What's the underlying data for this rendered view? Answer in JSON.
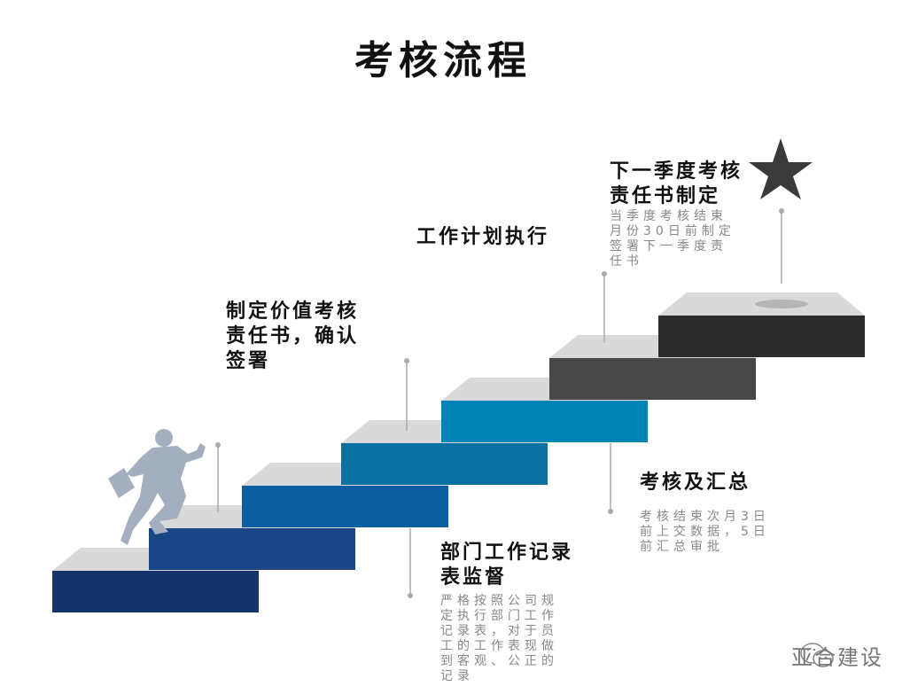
{
  "title": "考核流程",
  "steps_colors": [
    "#15336a",
    "#1b4686",
    "#0b5ea0",
    "#0a70a2",
    "#0084b6",
    "#474747",
    "#2c2c2c"
  ],
  "top_color": "#d9d9d9",
  "figure_color": "#a3aebf",
  "star_color": "#3a3a3a",
  "labels": [
    {
      "heading": "制定价值考核责任书，确认签署",
      "heading_lines": [
        "制定价值考核",
        "责任书，确认",
        "签署"
      ]
    },
    {
      "heading": "部门工作记录表监督",
      "heading_lines": [
        "部门工作记录",
        "表监督"
      ],
      "desc_lines": [
        "严格按照公司规",
        "定执行部门工作",
        "记录表，对于员",
        "工的工作表现做",
        "到客观、公正的",
        "记录"
      ]
    },
    {
      "heading": "工作计划执行"
    },
    {
      "heading": "考核及汇总",
      "desc_lines": [
        "考核结束次月3日",
        "前上交数据，5日",
        "前汇总审批"
      ]
    },
    {
      "heading_lines": [
        "下一季度考核",
        "责任书制定"
      ],
      "desc_lines": [
        "当季度考核结束",
        "月份30日前制定",
        "签署下一季度责",
        "任书"
      ]
    }
  ],
  "watermark": "亚合建设"
}
